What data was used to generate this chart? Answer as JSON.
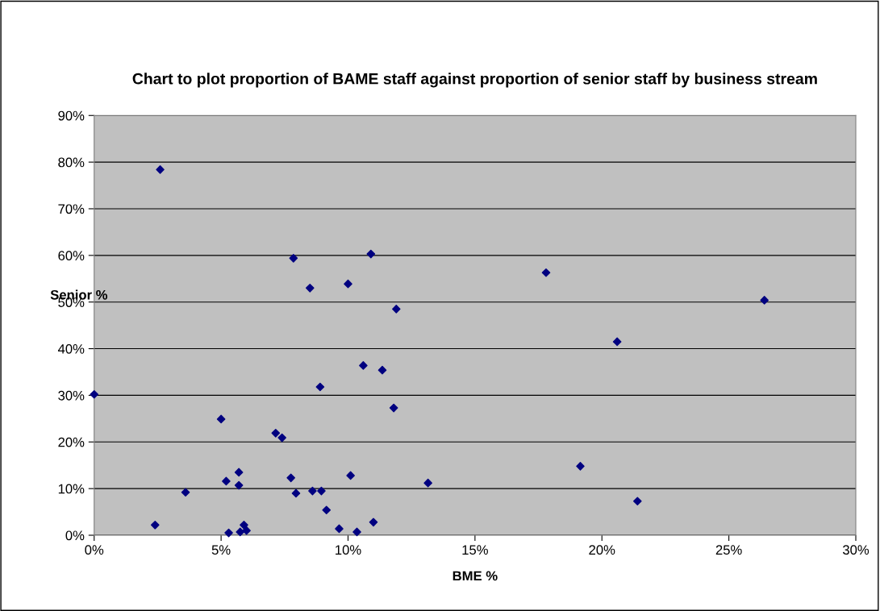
{
  "chart_data": {
    "type": "scatter",
    "title": "Chart to plot proportion of BAME staff against proportion of senior staff by business stream",
    "xlabel": "BME %",
    "ylabel": "Senior %",
    "marker": "diamond",
    "grid": "y",
    "legend": false,
    "xlim": [
      0,
      30
    ],
    "ylim": [
      0,
      90
    ],
    "xticks": [
      {
        "value": 0,
        "label": "0%"
      },
      {
        "value": 5,
        "label": "5%"
      },
      {
        "value": 10,
        "label": "10%"
      },
      {
        "value": 15,
        "label": "15%"
      },
      {
        "value": 20,
        "label": "20%"
      },
      {
        "value": 25,
        "label": "25%"
      },
      {
        "value": 30,
        "label": "30%"
      }
    ],
    "yticks": [
      {
        "value": 0,
        "label": "0%"
      },
      {
        "value": 10,
        "label": "10%"
      },
      {
        "value": 20,
        "label": "20%"
      },
      {
        "value": 30,
        "label": "30%"
      },
      {
        "value": 40,
        "label": "40%"
      },
      {
        "value": 50,
        "label": "50%"
      },
      {
        "value": 60,
        "label": "60%"
      },
      {
        "value": 70,
        "label": "70%"
      },
      {
        "value": 80,
        "label": "80%"
      },
      {
        "value": 90,
        "label": "90%"
      }
    ],
    "series": [
      {
        "color": "#000080",
        "x": [
          2.6,
          0,
          2.4,
          3.6,
          5.0,
          5.2,
          5.7,
          5.7,
          5.3,
          5.75,
          5.9,
          6.0,
          7.15,
          7.4,
          7.75,
          7.85,
          7.95,
          8.5,
          8.6,
          8.9,
          8.95,
          9.15,
          9.65,
          10.0,
          10.1,
          10.35,
          10.6,
          10.9,
          11.0,
          11.35,
          11.8,
          11.9,
          13.15,
          17.8,
          19.15,
          20.6,
          21.4,
          26.4
        ],
        "values": [
          78.4,
          30.2,
          2.2,
          9.2,
          24.9,
          11.6,
          13.5,
          10.7,
          0.5,
          0.7,
          2.2,
          1.0,
          21.9,
          20.9,
          12.3,
          59.4,
          9.0,
          53.0,
          9.5,
          31.8,
          9.5,
          5.4,
          1.4,
          53.9,
          12.8,
          0.7,
          36.4,
          60.3,
          2.8,
          35.4,
          27.3,
          48.5,
          11.2,
          56.3,
          14.8,
          41.5,
          7.3,
          50.4
        ]
      }
    ]
  }
}
